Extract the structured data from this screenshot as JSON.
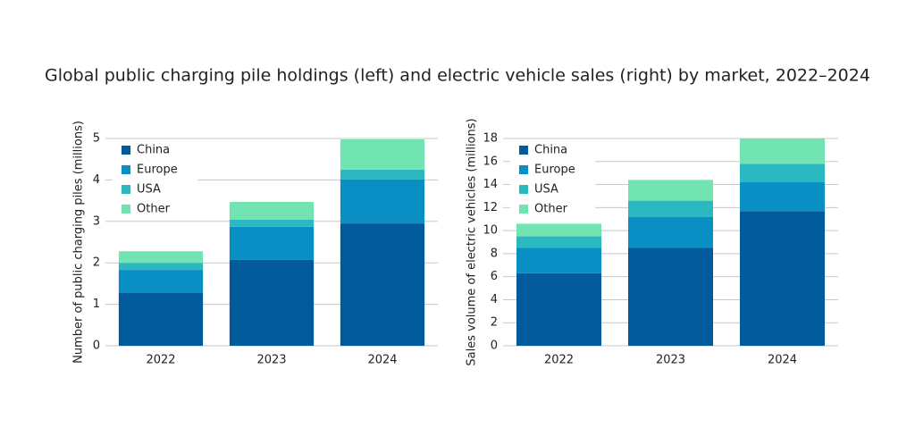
{
  "title": "Global public charging pile holdings (left) and electric vehicle sales (right) by market, 2022–2024",
  "chart_data": [
    {
      "type": "bar",
      "stacked": true,
      "y_label": "Number of public charging piles (millions)",
      "categories": [
        "2022",
        "2023",
        "2024"
      ],
      "series": [
        {
          "name": "China",
          "color": "#005a9c",
          "values": [
            1.28,
            2.07,
            2.95
          ]
        },
        {
          "name": "Europe",
          "color": "#0a8fc4",
          "values": [
            0.55,
            0.8,
            1.06
          ]
        },
        {
          "name": "USA",
          "color": "#2bb8c0",
          "values": [
            0.17,
            0.17,
            0.24
          ]
        },
        {
          "name": "Other",
          "color": "#72e4b2",
          "values": [
            0.28,
            0.43,
            0.73
          ]
        }
      ],
      "ylim": [
        0,
        5
      ],
      "yticks": [
        0,
        1,
        2,
        3,
        4,
        5
      ],
      "grid": true,
      "legend": "upper left"
    },
    {
      "type": "bar",
      "stacked": true,
      "y_label": "Sales volume of electric vehicles (millions)",
      "categories": [
        "2022",
        "2023",
        "2024"
      ],
      "series": [
        {
          "name": "China",
          "color": "#005a9c",
          "values": [
            6.3,
            8.5,
            11.7
          ]
        },
        {
          "name": "Europe",
          "color": "#0a8fc4",
          "values": [
            2.2,
            2.7,
            2.5
          ]
        },
        {
          "name": "USA",
          "color": "#2bb8c0",
          "values": [
            1.0,
            1.4,
            1.6
          ]
        },
        {
          "name": "Other",
          "color": "#72e4b2",
          "values": [
            1.1,
            1.8,
            2.2
          ]
        }
      ],
      "ylim": [
        0,
        18
      ],
      "yticks": [
        0,
        2,
        4,
        6,
        8,
        10,
        12,
        14,
        16,
        18
      ],
      "grid": true,
      "legend": "upper left"
    }
  ]
}
